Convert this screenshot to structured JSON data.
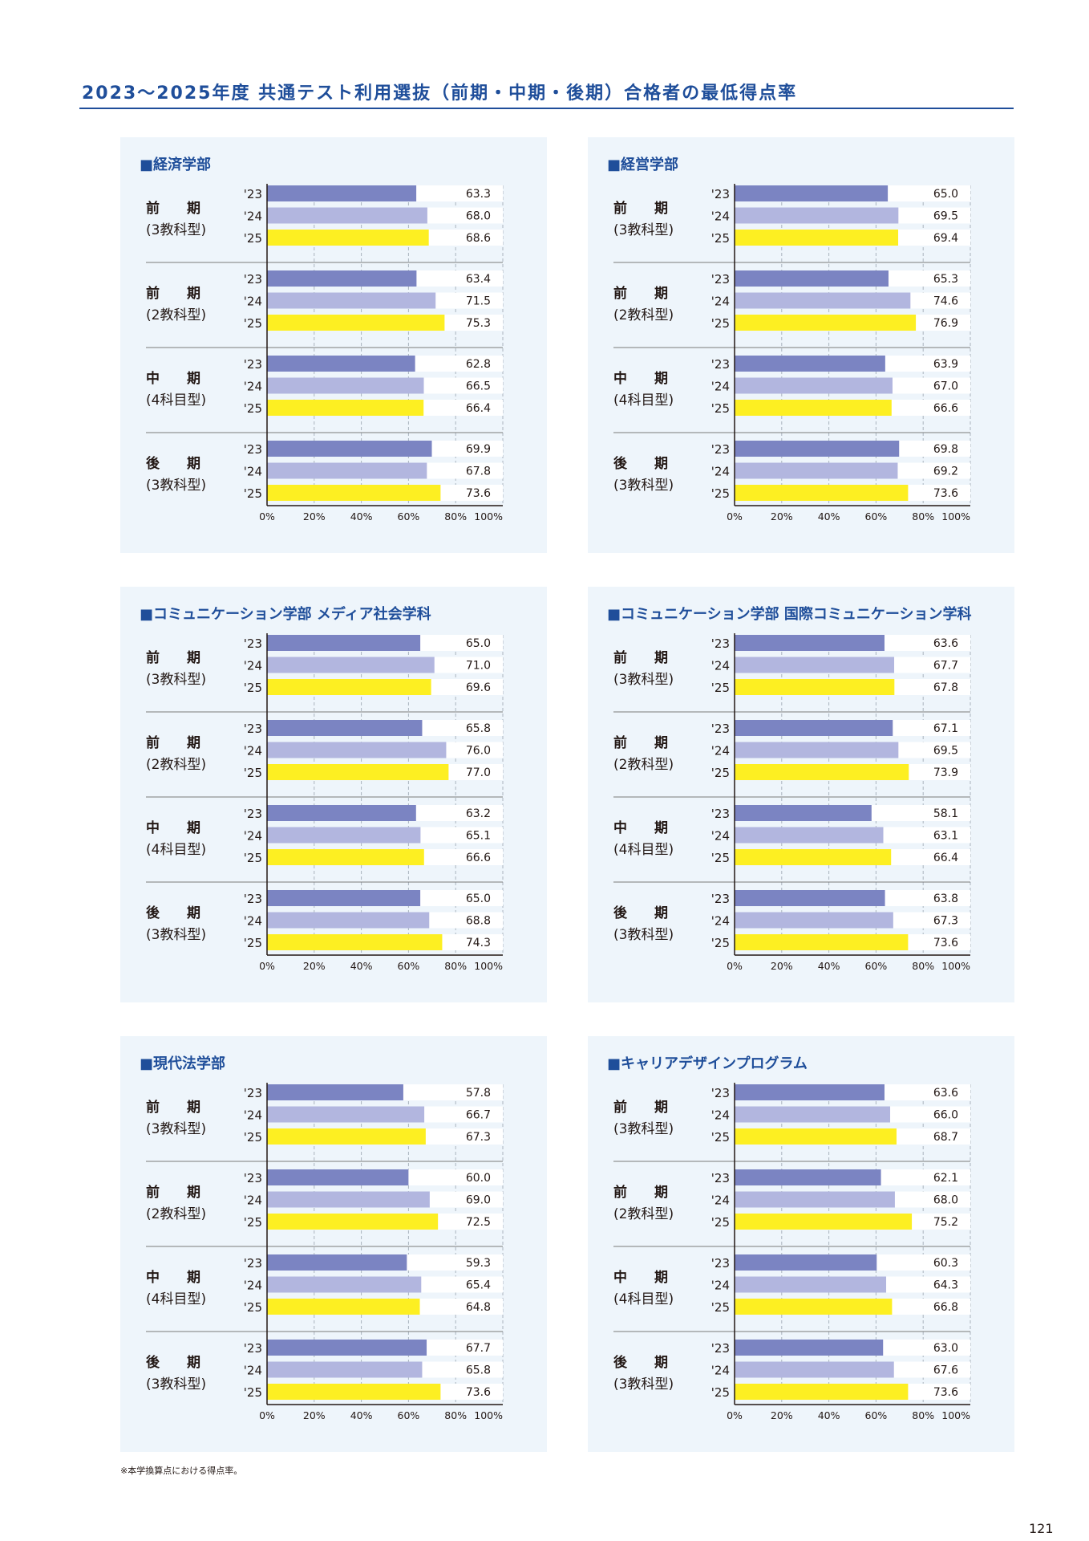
{
  "page": {
    "title": "2023〜2025年度 共通テスト利用選抜（前期・中期・後期）合格者の最低得点率",
    "footnote": "※本学換算点における得点率。",
    "page_number": "121"
  },
  "colors": {
    "accent": "#1f4e9a",
    "year_23": "#7b84c2",
    "year_24": "#b2b6df",
    "year_25": "#fdef22",
    "panel_bg": "#eef5fb"
  },
  "chart_data": [
    {
      "type": "bar",
      "orientation": "horizontal",
      "xlim": [
        0,
        100
      ],
      "title": "■経済学部",
      "x_ticks": [
        "0%",
        "20%",
        "40%",
        "60%",
        "80%",
        "100%"
      ],
      "groups": [
        {
          "label_top": "前　　期",
          "label_bottom": "(3教科型)",
          "years": [
            "'23",
            "'24",
            "'25"
          ],
          "values": [
            63.3,
            68.0,
            68.6
          ]
        },
        {
          "label_top": "前　　期",
          "label_bottom": "(2教科型)",
          "years": [
            "'23",
            "'24",
            "'25"
          ],
          "values": [
            63.4,
            71.5,
            75.3
          ]
        },
        {
          "label_top": "中　　期",
          "label_bottom": "(4科目型)",
          "years": [
            "'23",
            "'24",
            "'25"
          ],
          "values": [
            62.8,
            66.5,
            66.4
          ]
        },
        {
          "label_top": "後　　期",
          "label_bottom": "(3教科型)",
          "years": [
            "'23",
            "'24",
            "'25"
          ],
          "values": [
            69.9,
            67.8,
            73.6
          ]
        }
      ]
    },
    {
      "type": "bar",
      "orientation": "horizontal",
      "xlim": [
        0,
        100
      ],
      "title": "■経営学部",
      "x_ticks": [
        "0%",
        "20%",
        "40%",
        "60%",
        "80%",
        "100%"
      ],
      "groups": [
        {
          "label_top": "前　　期",
          "label_bottom": "(3教科型)",
          "years": [
            "'23",
            "'24",
            "'25"
          ],
          "values": [
            65.0,
            69.5,
            69.4
          ]
        },
        {
          "label_top": "前　　期",
          "label_bottom": "(2教科型)",
          "years": [
            "'23",
            "'24",
            "'25"
          ],
          "values": [
            65.3,
            74.6,
            76.9
          ]
        },
        {
          "label_top": "中　　期",
          "label_bottom": "(4科目型)",
          "years": [
            "'23",
            "'24",
            "'25"
          ],
          "values": [
            63.9,
            67.0,
            66.6
          ]
        },
        {
          "label_top": "後　　期",
          "label_bottom": "(3教科型)",
          "years": [
            "'23",
            "'24",
            "'25"
          ],
          "values": [
            69.8,
            69.2,
            73.6
          ]
        }
      ]
    },
    {
      "type": "bar",
      "orientation": "horizontal",
      "xlim": [
        0,
        100
      ],
      "title": "■コミュニケーション学部 メディア社会学科",
      "x_ticks": [
        "0%",
        "20%",
        "40%",
        "60%",
        "80%",
        "100%"
      ],
      "groups": [
        {
          "label_top": "前　　期",
          "label_bottom": "(3教科型)",
          "years": [
            "'23",
            "'24",
            "'25"
          ],
          "values": [
            65.0,
            71.0,
            69.6
          ]
        },
        {
          "label_top": "前　　期",
          "label_bottom": "(2教科型)",
          "years": [
            "'23",
            "'24",
            "'25"
          ],
          "values": [
            65.8,
            76.0,
            77.0
          ]
        },
        {
          "label_top": "中　　期",
          "label_bottom": "(4科目型)",
          "years": [
            "'23",
            "'24",
            "'25"
          ],
          "values": [
            63.2,
            65.1,
            66.6
          ]
        },
        {
          "label_top": "後　　期",
          "label_bottom": "(3教科型)",
          "years": [
            "'23",
            "'24",
            "'25"
          ],
          "values": [
            65.0,
            68.8,
            74.3
          ]
        }
      ]
    },
    {
      "type": "bar",
      "orientation": "horizontal",
      "xlim": [
        0,
        100
      ],
      "title": "■コミュニケーション学部 国際コミュニケーション学科",
      "x_ticks": [
        "0%",
        "20%",
        "40%",
        "60%",
        "80%",
        "100%"
      ],
      "groups": [
        {
          "label_top": "前　　期",
          "label_bottom": "(3教科型)",
          "years": [
            "'23",
            "'24",
            "'25"
          ],
          "values": [
            63.6,
            67.7,
            67.8
          ]
        },
        {
          "label_top": "前　　期",
          "label_bottom": "(2教科型)",
          "years": [
            "'23",
            "'24",
            "'25"
          ],
          "values": [
            67.1,
            69.5,
            73.9
          ]
        },
        {
          "label_top": "中　　期",
          "label_bottom": "(4科目型)",
          "years": [
            "'23",
            "'24",
            "'25"
          ],
          "values": [
            58.1,
            63.1,
            66.4
          ]
        },
        {
          "label_top": "後　　期",
          "label_bottom": "(3教科型)",
          "years": [
            "'23",
            "'24",
            "'25"
          ],
          "values": [
            63.8,
            67.3,
            73.6
          ]
        }
      ]
    },
    {
      "type": "bar",
      "orientation": "horizontal",
      "xlim": [
        0,
        100
      ],
      "title": "■現代法学部",
      "x_ticks": [
        "0%",
        "20%",
        "40%",
        "60%",
        "80%",
        "100%"
      ],
      "groups": [
        {
          "label_top": "前　　期",
          "label_bottom": "(3教科型)",
          "years": [
            "'23",
            "'24",
            "'25"
          ],
          "values": [
            57.8,
            66.7,
            67.3
          ]
        },
        {
          "label_top": "前　　期",
          "label_bottom": "(2教科型)",
          "years": [
            "'23",
            "'24",
            "'25"
          ],
          "values": [
            60.0,
            69.0,
            72.5
          ]
        },
        {
          "label_top": "中　　期",
          "label_bottom": "(4科目型)",
          "years": [
            "'23",
            "'24",
            "'25"
          ],
          "values": [
            59.3,
            65.4,
            64.8
          ]
        },
        {
          "label_top": "後　　期",
          "label_bottom": "(3教科型)",
          "years": [
            "'23",
            "'24",
            "'25"
          ],
          "values": [
            67.7,
            65.8,
            73.6
          ]
        }
      ]
    },
    {
      "type": "bar",
      "orientation": "horizontal",
      "xlim": [
        0,
        100
      ],
      "title": "■キャリアデザインプログラム",
      "x_ticks": [
        "0%",
        "20%",
        "40%",
        "60%",
        "80%",
        "100%"
      ],
      "groups": [
        {
          "label_top": "前　　期",
          "label_bottom": "(3教科型)",
          "years": [
            "'23",
            "'24",
            "'25"
          ],
          "values": [
            63.6,
            66.0,
            68.7
          ]
        },
        {
          "label_top": "前　　期",
          "label_bottom": "(2教科型)",
          "years": [
            "'23",
            "'24",
            "'25"
          ],
          "values": [
            62.1,
            68.0,
            75.2
          ]
        },
        {
          "label_top": "中　　期",
          "label_bottom": "(4科目型)",
          "years": [
            "'23",
            "'24",
            "'25"
          ],
          "values": [
            60.3,
            64.3,
            66.8
          ]
        },
        {
          "label_top": "後　　期",
          "label_bottom": "(3教科型)",
          "years": [
            "'23",
            "'24",
            "'25"
          ],
          "values": [
            63.0,
            67.6,
            73.6
          ]
        }
      ]
    }
  ]
}
